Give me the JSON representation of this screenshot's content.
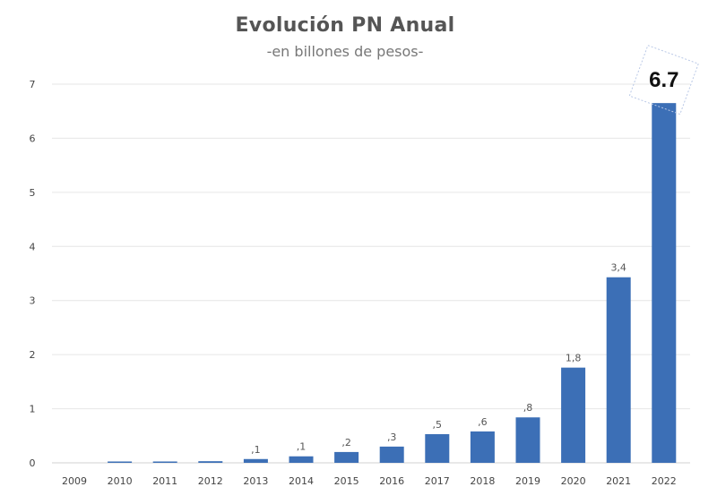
{
  "chart_data": {
    "type": "bar",
    "title": "Evolución PN Anual",
    "subtitle": "-en billones de pesos-",
    "categories": [
      "2009",
      "2010",
      "2011",
      "2012",
      "2013",
      "2014",
      "2015",
      "2016",
      "2017",
      "2018",
      "2019",
      "2020",
      "2021",
      "2022"
    ],
    "values": [
      0.0,
      0.01,
      0.02,
      0.03,
      0.07,
      0.12,
      0.2,
      0.3,
      0.53,
      0.58,
      0.84,
      1.76,
      3.43,
      6.65
    ],
    "data_labels": [
      "",
      "",
      "",
      "",
      ",1",
      ",1",
      ",2",
      ",3",
      ",5",
      ",6",
      ",8",
      "1,8",
      "3,4",
      "6.7"
    ],
    "highlight_index": 13,
    "ylim": [
      0,
      7
    ],
    "yticks": [
      0,
      1,
      2,
      3,
      4,
      5,
      6,
      7
    ],
    "xlabel": "",
    "ylabel": "",
    "grid": true,
    "bar_color": "#3c6fb6"
  }
}
